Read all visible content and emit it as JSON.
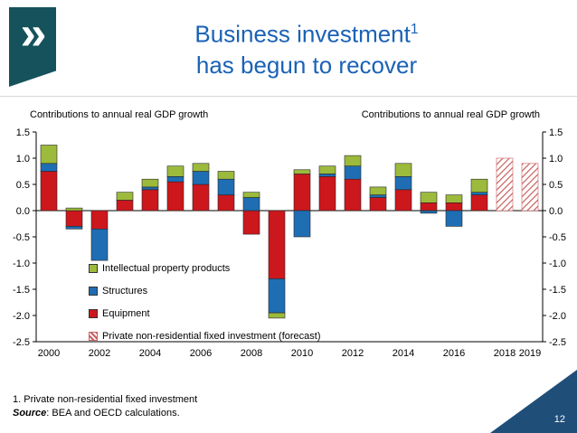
{
  "slide": {
    "title_line1": "Business investment",
    "title_sup": "1",
    "title_line2": "has begun to recover",
    "page_number": "12",
    "footnote": "1. Private non-residential fixed investment",
    "source_label": "Source",
    "source_text": ": BEA and OECD calculations."
  },
  "logo": {
    "glyph": "»"
  },
  "chart_data": {
    "type": "bar",
    "stacked": true,
    "axis_title": "Contributions to annual real GDP growth",
    "ylim": [
      -2.5,
      1.5
    ],
    "ytick_step": 0.5,
    "yticks": [
      1.5,
      1.0,
      0.5,
      0.0,
      -0.5,
      -1.0,
      -1.5,
      -2.0,
      -2.5
    ],
    "categories": [
      "2000",
      "2001",
      "2002",
      "2003",
      "2004",
      "2005",
      "2006",
      "2007",
      "2008",
      "2009",
      "2010",
      "2011",
      "2012",
      "2013",
      "2014",
      "2015",
      "2016",
      "2017",
      "2018",
      "2019"
    ],
    "x_label_indices": [
      0,
      2,
      4,
      6,
      8,
      10,
      12,
      14,
      16,
      18,
      19
    ],
    "series": [
      {
        "name": "Equipment",
        "color": "#CC171D",
        "hatch": false,
        "values": [
          0.75,
          -0.3,
          -0.35,
          0.2,
          0.4,
          0.55,
          0.5,
          0.3,
          -0.45,
          -1.3,
          0.7,
          0.65,
          0.6,
          0.25,
          0.4,
          0.15,
          0.15,
          0.3,
          0,
          0
        ]
      },
      {
        "name": "Structures",
        "color": "#1F6EB4",
        "hatch": false,
        "values": [
          0.15,
          -0.05,
          -0.6,
          0.0,
          0.05,
          0.1,
          0.25,
          0.3,
          0.25,
          -0.65,
          -0.5,
          0.05,
          0.25,
          0.05,
          0.25,
          -0.05,
          -0.3,
          0.05,
          0,
          0
        ]
      },
      {
        "name": "Intellectual property products",
        "color": "#9CBA3B",
        "hatch": false,
        "values": [
          0.35,
          0.05,
          0.0,
          0.15,
          0.15,
          0.2,
          0.15,
          0.15,
          0.1,
          -0.1,
          0.08,
          0.15,
          0.2,
          0.15,
          0.25,
          0.2,
          0.15,
          0.25,
          0,
          0
        ]
      },
      {
        "name": "Private non-residential fixed investment (forecast)",
        "color": "#C9605F",
        "hatch": true,
        "values": [
          0,
          0,
          0,
          0,
          0,
          0,
          0,
          0,
          0,
          0,
          0,
          0,
          0,
          0,
          0,
          0,
          0,
          0,
          1.0,
          0.9
        ]
      }
    ],
    "legend_order": [
      2,
      1,
      0,
      3
    ]
  }
}
